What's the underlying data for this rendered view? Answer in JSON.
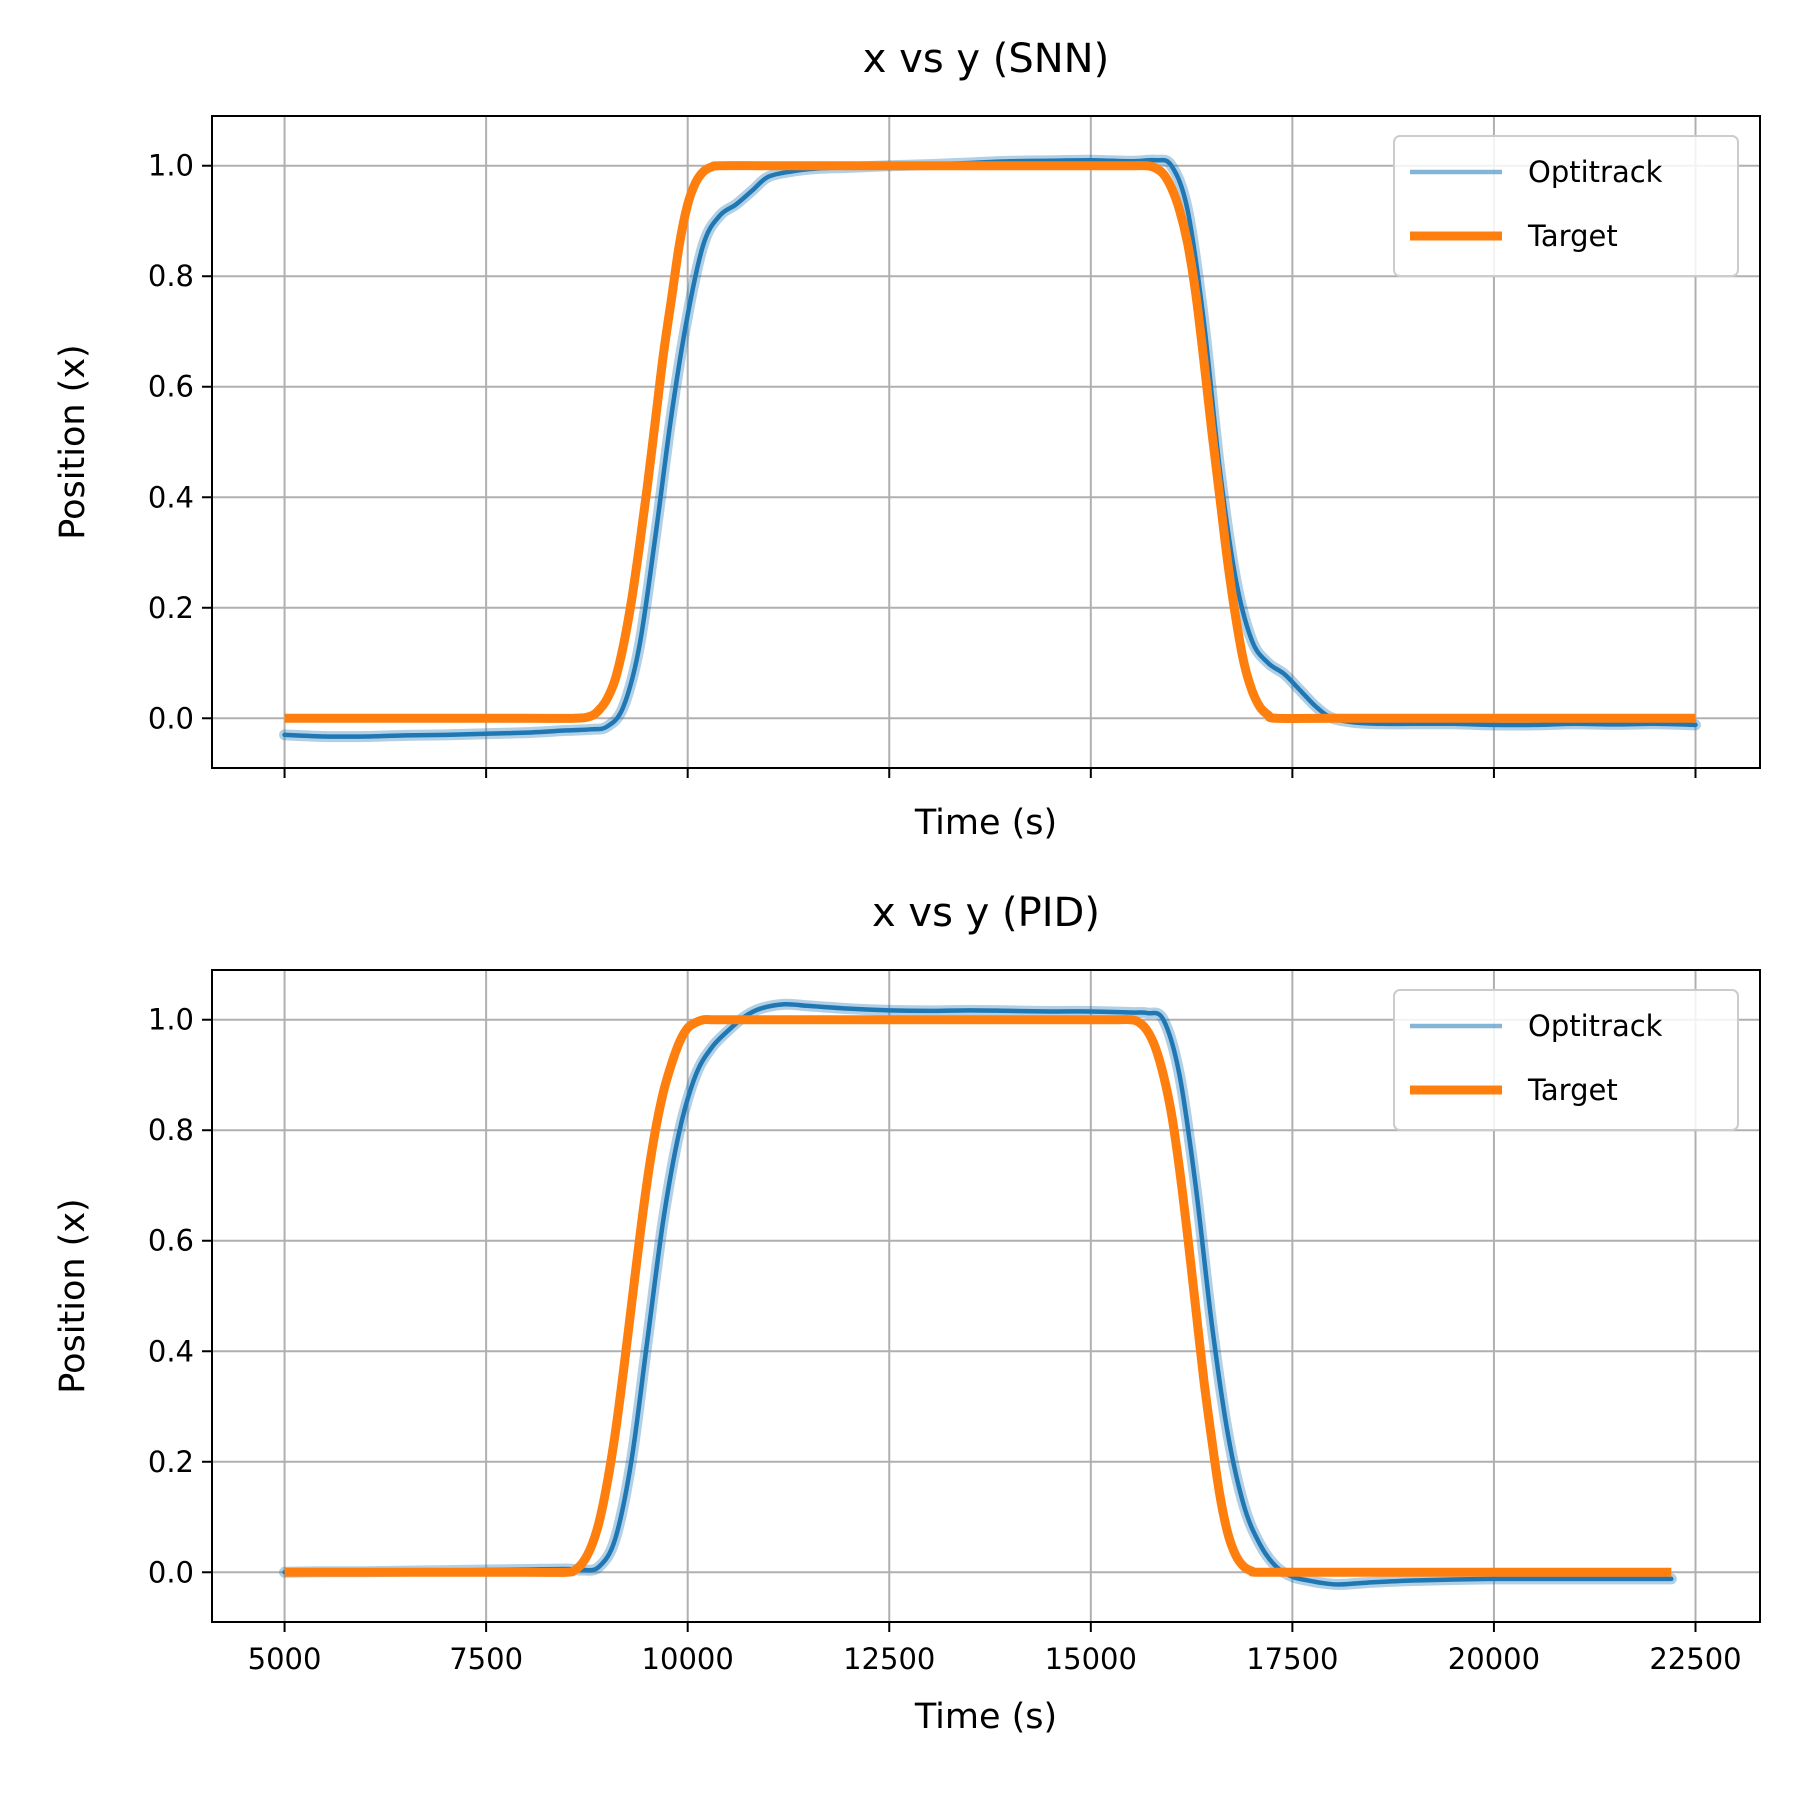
{
  "colors": {
    "optitrack": "#1f77b4",
    "target": "#ff7f0e",
    "grid": "#b0b0b0",
    "axis": "#000000",
    "legend_border": "#cccccc"
  },
  "chart_data": [
    {
      "type": "line",
      "title": "x vs y (SNN)",
      "xlabel": "Time (s)",
      "ylabel": "Position (x)",
      "xlim": [
        4100,
        23300
      ],
      "ylim": [
        -0.09,
        1.09
      ],
      "xticks": [
        5000,
        7500,
        10000,
        12500,
        15000,
        17500,
        20000,
        22500
      ],
      "xtick_labels_shown": false,
      "yticks": [
        0.0,
        0.2,
        0.4,
        0.6,
        0.8,
        1.0
      ],
      "ytick_labels": [
        "0.0",
        "0.2",
        "0.4",
        "0.6",
        "0.8",
        "1.0"
      ],
      "grid": true,
      "legend": "top-right",
      "series": [
        {
          "name": "Optitrack",
          "x": [
            5000,
            5500,
            6000,
            6500,
            7000,
            7500,
            8000,
            8500,
            8800,
            9000,
            9200,
            9400,
            9600,
            9800,
            10000,
            10200,
            10400,
            10600,
            10800,
            11000,
            11300,
            11600,
            12000,
            12500,
            13000,
            13500,
            14000,
            14500,
            15000,
            15500,
            15800,
            16000,
            16200,
            16400,
            16600,
            16800,
            17000,
            17200,
            17400,
            17600,
            17800,
            18000,
            18300,
            18600,
            19000,
            19500,
            20000,
            20500,
            21000,
            21500,
            22000,
            22500
          ],
          "y": [
            -0.03,
            -0.033,
            -0.033,
            -0.031,
            -0.03,
            -0.028,
            -0.026,
            -0.022,
            -0.02,
            -0.015,
            0.02,
            0.13,
            0.33,
            0.55,
            0.73,
            0.86,
            0.91,
            0.93,
            0.955,
            0.98,
            0.99,
            0.995,
            0.997,
            1.0,
            1.002,
            1.005,
            1.008,
            1.009,
            1.01,
            1.008,
            1.01,
            1.0,
            0.92,
            0.72,
            0.45,
            0.25,
            0.14,
            0.1,
            0.08,
            0.05,
            0.02,
            0.0,
            -0.008,
            -0.01,
            -0.01,
            -0.01,
            -0.012,
            -0.012,
            -0.01,
            -0.011,
            -0.01,
            -0.012
          ]
        },
        {
          "name": "Target",
          "x": [
            5000,
            6000,
            7000,
            8000,
            8600,
            8800,
            8900,
            9000,
            9100,
            9200,
            9300,
            9400,
            9500,
            9600,
            9700,
            9800,
            9900,
            10000,
            10100,
            10200,
            10300,
            10400,
            11000,
            12000,
            13000,
            14000,
            15000,
            15500,
            15700,
            15800,
            15900,
            16000,
            16100,
            16200,
            16300,
            16400,
            16500,
            16600,
            16700,
            16800,
            16900,
            17000,
            17100,
            17200,
            17300,
            18000,
            19000,
            20000,
            21000,
            22000,
            22500
          ],
          "y": [
            0,
            0,
            0,
            0,
            0,
            0.004,
            0.015,
            0.035,
            0.07,
            0.13,
            0.21,
            0.31,
            0.42,
            0.54,
            0.66,
            0.76,
            0.86,
            0.93,
            0.97,
            0.99,
            0.998,
            1.0,
            1.0,
            1.0,
            1.0,
            1.0,
            1.0,
            1.0,
            1.0,
            0.996,
            0.985,
            0.96,
            0.92,
            0.86,
            0.77,
            0.65,
            0.52,
            0.4,
            0.28,
            0.18,
            0.1,
            0.05,
            0.02,
            0.006,
            0.0,
            0,
            0,
            0,
            0,
            0,
            0
          ]
        }
      ]
    },
    {
      "type": "line",
      "title": "x vs y (PID)",
      "xlabel": "Time (s)",
      "ylabel": "Position (x)",
      "xlim": [
        4100,
        23300
      ],
      "ylim": [
        -0.09,
        1.09
      ],
      "xticks": [
        5000,
        7500,
        10000,
        12500,
        15000,
        17500,
        20000,
        22500
      ],
      "xtick_labels": [
        "5000",
        "7500",
        "10000",
        "12500",
        "15000",
        "17500",
        "20000",
        "22500"
      ],
      "xtick_labels_shown": true,
      "yticks": [
        0.0,
        0.2,
        0.4,
        0.6,
        0.8,
        1.0
      ],
      "ytick_labels": [
        "0.0",
        "0.2",
        "0.4",
        "0.6",
        "0.8",
        "1.0"
      ],
      "grid": true,
      "legend": "top-right",
      "series": [
        {
          "name": "Optitrack",
          "x": [
            5000,
            5500,
            6000,
            6500,
            7000,
            7500,
            8000,
            8500,
            8700,
            8900,
            9100,
            9300,
            9500,
            9700,
            9900,
            10100,
            10300,
            10500,
            10700,
            10900,
            11200,
            11500,
            12000,
            12500,
            13000,
            13500,
            14000,
            14500,
            15000,
            15500,
            15700,
            15900,
            16100,
            16300,
            16500,
            16700,
            16900,
            17100,
            17300,
            17500,
            17700,
            17900,
            18100,
            18500,
            19000,
            19500,
            20000,
            20500,
            21000,
            21500,
            22000,
            22200
          ],
          "y": [
            0.0,
            0.001,
            0.001,
            0.002,
            0.003,
            0.004,
            0.005,
            0.006,
            0.004,
            0.01,
            0.06,
            0.2,
            0.42,
            0.64,
            0.8,
            0.9,
            0.95,
            0.98,
            1.005,
            1.02,
            1.028,
            1.025,
            1.02,
            1.017,
            1.016,
            1.017,
            1.016,
            1.015,
            1.015,
            1.013,
            1.012,
            1.0,
            0.9,
            0.7,
            0.45,
            0.25,
            0.12,
            0.05,
            0.01,
            -0.008,
            -0.015,
            -0.02,
            -0.022,
            -0.018,
            -0.015,
            -0.013,
            -0.012,
            -0.012,
            -0.012,
            -0.012,
            -0.012,
            -0.012
          ]
        },
        {
          "name": "Target",
          "x": [
            5000,
            6000,
            7000,
            8000,
            8500,
            8600,
            8700,
            8800,
            8900,
            9000,
            9100,
            9200,
            9300,
            9400,
            9500,
            9600,
            9700,
            9800,
            9900,
            10000,
            10100,
            10200,
            10300,
            10400,
            11000,
            12000,
            13000,
            14000,
            15000,
            15300,
            15500,
            15600,
            15700,
            15800,
            15900,
            16000,
            16100,
            16200,
            16300,
            16400,
            16500,
            16600,
            16700,
            16800,
            16900,
            17000,
            17100,
            18000,
            19000,
            20000,
            21000,
            22200
          ],
          "y": [
            0,
            0,
            0,
            0,
            0,
            0.004,
            0.018,
            0.045,
            0.09,
            0.16,
            0.25,
            0.36,
            0.48,
            0.6,
            0.71,
            0.8,
            0.87,
            0.92,
            0.96,
            0.985,
            0.995,
            1.0,
            1.0,
            1.0,
            1.0,
            1.0,
            1.0,
            1.0,
            1.0,
            1.0,
            1.0,
            0.995,
            0.98,
            0.95,
            0.9,
            0.83,
            0.73,
            0.61,
            0.48,
            0.35,
            0.24,
            0.14,
            0.07,
            0.03,
            0.01,
            0.002,
            0,
            0,
            0,
            0,
            0,
            0
          ]
        }
      ]
    }
  ]
}
